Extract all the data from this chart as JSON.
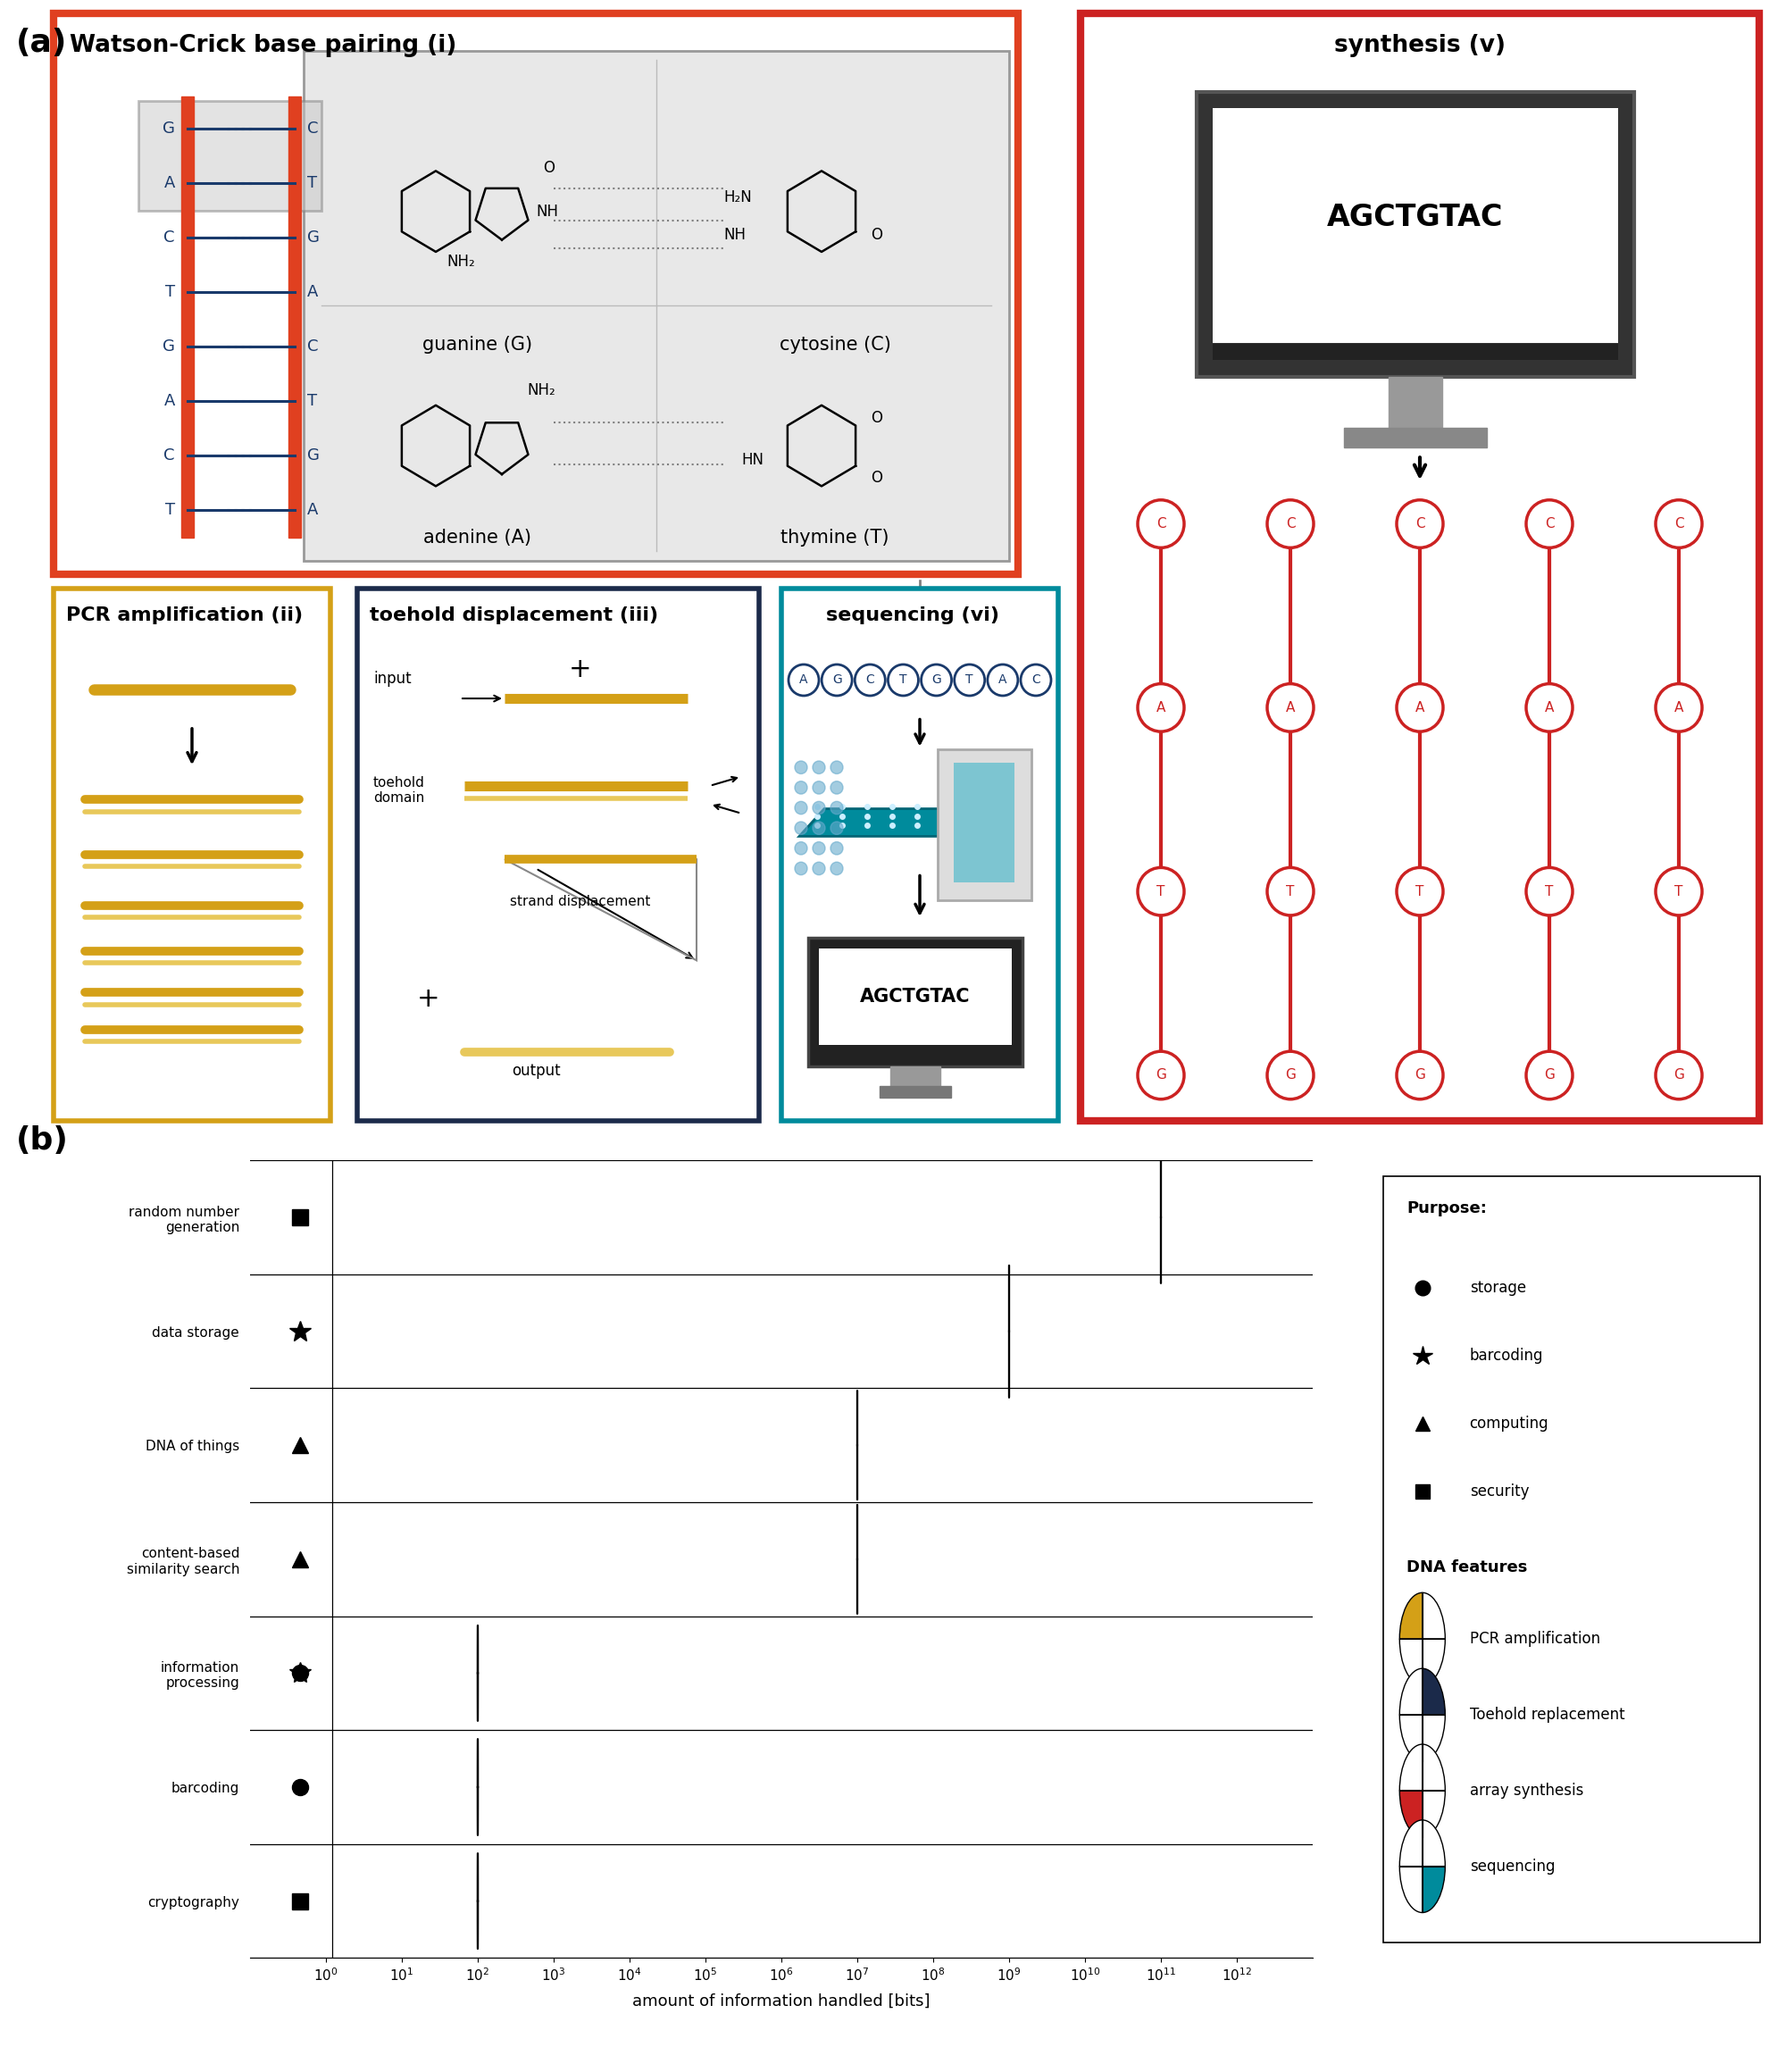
{
  "fig_width": 20.0,
  "fig_height": 23.2,
  "box1_color": "#E04020",
  "box2_color": "#D4A017",
  "box3_color": "#1B2A4A",
  "box4_color": "#008B9C",
  "box5_color": "#CC2222",
  "yellow": "#D4A017",
  "teal": "#008B9C",
  "navy": "#1B2A4A",
  "red_c": "#CC2222",
  "white": "#FFFFFF",
  "dna_blue": "#1A3A6B",
  "scatter_rows": [
    "random number\ngeneration",
    "data storage",
    "DNA of things",
    "content-based\nsimilarity search",
    "information\nprocessing",
    "barcoding",
    "cryptography"
  ],
  "xlabel": "amount of information handled [bits]"
}
